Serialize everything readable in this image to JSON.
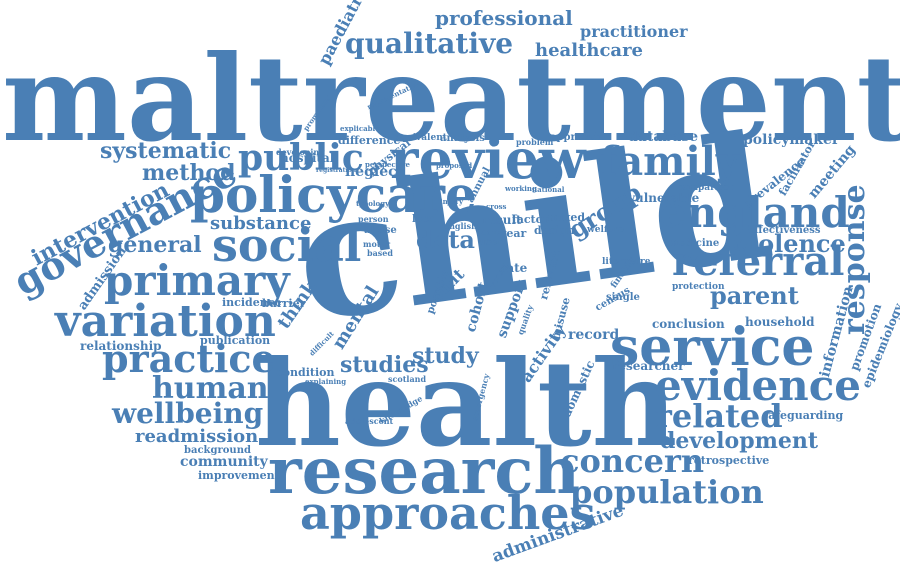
{
  "word_color": "#4a7fb5",
  "background": "#ffffff",
  "words": [
    "maltreatment",
    "child",
    "health",
    "research",
    "approaches",
    "review",
    "policycare",
    "social",
    "primary",
    "variation",
    "practice",
    "service",
    "england",
    "referral",
    "evidence",
    "family",
    "governance",
    "wellbeing",
    "human",
    "population",
    "concern",
    "related",
    "development",
    "response",
    "qualitative",
    "professional",
    "healthcare",
    "practitioner",
    "paediatric",
    "public",
    "systematic",
    "method",
    "intervention",
    "general",
    "substance",
    "data",
    "group",
    "parent",
    "violence",
    "studies",
    "study",
    "readmission",
    "community",
    "improvement",
    "background",
    "administrative",
    "admission",
    "relationship",
    "publication",
    "incidence",
    "condition",
    "hospital",
    "neglect",
    "mental",
    "think",
    "barrier",
    "unit",
    "cohort",
    "support",
    "activity",
    "record",
    "domestic",
    "researcher",
    "conclusion",
    "household",
    "information",
    "promotion",
    "epidemiology",
    "prevalence",
    "facilitator",
    "meeting",
    "policymaker",
    "effectiveness",
    "medicine",
    "protection",
    "vulnerable",
    "comparison",
    "database",
    "safeguarding",
    "retrospective",
    "analysis",
    "equivalent",
    "difference",
    "physical",
    "explicable",
    "approach",
    "problem",
    "result",
    "factor",
    "mixed",
    "design",
    "welfare",
    "rate",
    "user",
    "year",
    "local",
    "abuse",
    "motor",
    "based",
    "person",
    "team",
    "annual",
    "proposed",
    "national",
    "working",
    "single",
    "census",
    "misuse",
    "relevant",
    "scotland",
    "adolescent",
    "knowledge",
    "emergency",
    "quality",
    "finding",
    "literature",
    "developing",
    "difficult",
    "explaining",
    "promoting",
    "representative",
    "injury",
    "young",
    "possible",
    "cross",
    "english",
    "perspective",
    "typology",
    "registration"
  ]
}
